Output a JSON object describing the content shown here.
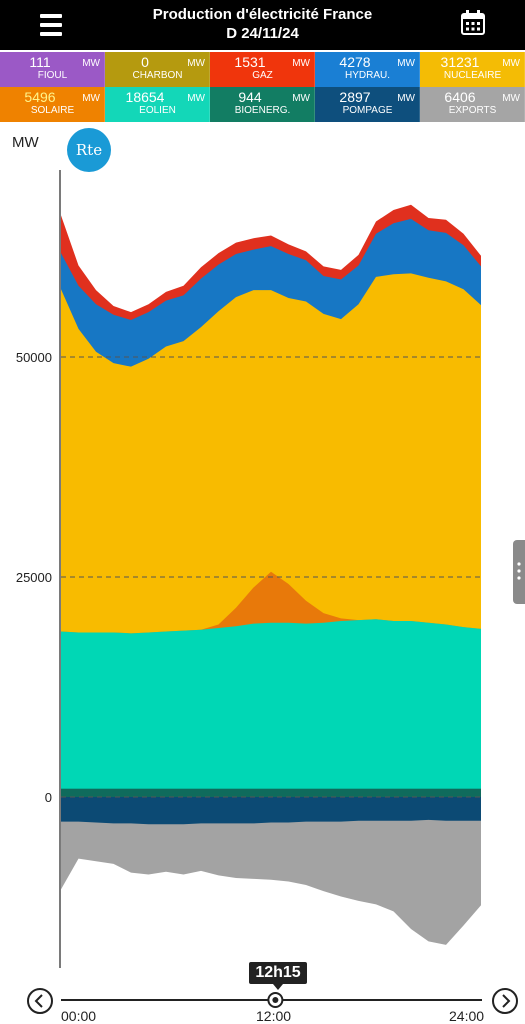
{
  "header": {
    "title": "Production d'électricité France",
    "subtitle": "D 24/11/24"
  },
  "tiles": [
    {
      "value": "111",
      "unit": "MW",
      "name": "FIOUL",
      "color": "#9b59c6",
      "text_color": "#ffffff"
    },
    {
      "value": "0",
      "unit": "MW",
      "name": "CHARBON",
      "color": "#b59a0f",
      "text_color": "#ffffff"
    },
    {
      "value": "1531",
      "unit": "MW",
      "name": "GAZ",
      "color": "#f0350c",
      "text_color": "#ffffff"
    },
    {
      "value": "4278",
      "unit": "MW",
      "name": "HYDRAU.",
      "color": "#1a7fd4",
      "text_color": "#ffffff"
    },
    {
      "value": "31231",
      "unit": "MW",
      "name": "NUCLEAIRE",
      "color": "#f4bc05",
      "text_color": "#ffffff"
    },
    {
      "value": "5496",
      "unit": "MW",
      "name": "SOLAIRE",
      "color": "#ef8200",
      "text_color": "#fff48a"
    },
    {
      "value": "18654",
      "unit": "MW",
      "name": "EOLIEN",
      "color": "#13d7b8",
      "text_color": "#ffffff"
    },
    {
      "value": "944",
      "unit": "MW",
      "name": "BIOENERG.",
      "color": "#127d63",
      "text_color": "#ffffff"
    },
    {
      "value": "2897",
      "unit": "MW",
      "name": "POMPAGE",
      "color": "#0e4f7d",
      "text_color": "#ffffff"
    },
    {
      "value": "6406",
      "unit": "MW",
      "name": "EXPORTS",
      "color": "#a5a5a5",
      "text_color": "#ffffff"
    }
  ],
  "chart_data": {
    "type": "area",
    "ylabel": "MW",
    "y_ticks": [
      "50000",
      "25000",
      "0"
    ],
    "ylim": [
      -20000,
      70000
    ],
    "x_ticks": [
      "00:00",
      "12:00",
      "24:00"
    ],
    "x_hours": [
      0,
      1,
      2,
      3,
      4,
      5,
      6,
      7,
      8,
      9,
      10,
      11,
      12,
      13,
      14,
      15,
      16,
      17,
      18,
      19,
      20,
      21,
      22,
      23,
      24
    ],
    "cursor_hour": 12.25,
    "cursor_label": "12h15",
    "stack_top_series": [
      {
        "name": "EOLIEN",
        "color": "#00d7b5",
        "top": [
          18800,
          18700,
          18700,
          18700,
          18600,
          18700,
          18800,
          18900,
          19000,
          19200,
          19400,
          19700,
          19800,
          19800,
          19700,
          19800,
          20000,
          20100,
          20200,
          20000,
          20000,
          19800,
          19600,
          19300,
          19100
        ]
      },
      {
        "name": "SOLAIRE",
        "color": "#e8790a",
        "top": [
          18800,
          18700,
          18700,
          18700,
          18600,
          18700,
          18800,
          18900,
          19000,
          19600,
          21500,
          23800,
          25600,
          24200,
          22300,
          20900,
          20300,
          20100,
          20200,
          20000,
          20000,
          19800,
          19600,
          19300,
          19100
        ]
      },
      {
        "name": "NUCLEAIRE",
        "color": "#f8bb00",
        "top": [
          57700,
          53200,
          50600,
          49300,
          48900,
          49800,
          51200,
          51800,
          53400,
          55200,
          56800,
          57600,
          57600,
          56700,
          56300,
          54900,
          54300,
          56000,
          59100,
          59400,
          59500,
          59000,
          58600,
          57700,
          55900
        ]
      },
      {
        "name": "HYDRAU.",
        "color": "#1777c4",
        "top": [
          61800,
          58100,
          56000,
          54800,
          54200,
          55100,
          56400,
          57000,
          58900,
          60500,
          61700,
          62200,
          62600,
          61700,
          61000,
          59200,
          58800,
          60400,
          64000,
          65200,
          65700,
          64400,
          64100,
          62700,
          60300
        ]
      },
      {
        "name": "GAZ",
        "color": "#e0301e",
        "top": [
          66100,
          60400,
          57600,
          55800,
          55100,
          56000,
          57400,
          58100,
          60200,
          61800,
          63000,
          63500,
          63800,
          62800,
          62000,
          60300,
          59900,
          61600,
          65400,
          66700,
          67300,
          65800,
          65600,
          64000,
          61500
        ]
      }
    ],
    "negative_series": [
      {
        "name": "POMPAGE",
        "color": "#0c4a74",
        "bottom": [
          -2800,
          -2800,
          -2900,
          -3000,
          -3000,
          -3100,
          -3100,
          -3100,
          -3000,
          -3000,
          -3000,
          -3000,
          -2900,
          -2900,
          -2800,
          -2800,
          -2800,
          -2700,
          -2700,
          -2700,
          -2700,
          -2600,
          -2700,
          -2700,
          -2700
        ]
      },
      {
        "name": "EXPORTS",
        "color": "#a3a3a3",
        "bottom": [
          -10500,
          -7000,
          -7300,
          -7600,
          -8600,
          -8800,
          -8500,
          -8800,
          -8400,
          -8900,
          -9200,
          -9300,
          -9400,
          -9600,
          -10000,
          -10700,
          -11300,
          -11800,
          -12200,
          -13000,
          -15000,
          -16400,
          -16800,
          -14600,
          -12300
        ]
      }
    ],
    "flat_layers": [
      {
        "name": "BIOENERG.",
        "color": "#0f6b5c",
        "from": 0,
        "to": 944
      }
    ]
  },
  "colors": {
    "header_bg": "#000000",
    "grid_line": "#555555",
    "axis_line": "#7a7a7a",
    "rte_logo": "#1a9ad6"
  },
  "logo_text": "Rte"
}
